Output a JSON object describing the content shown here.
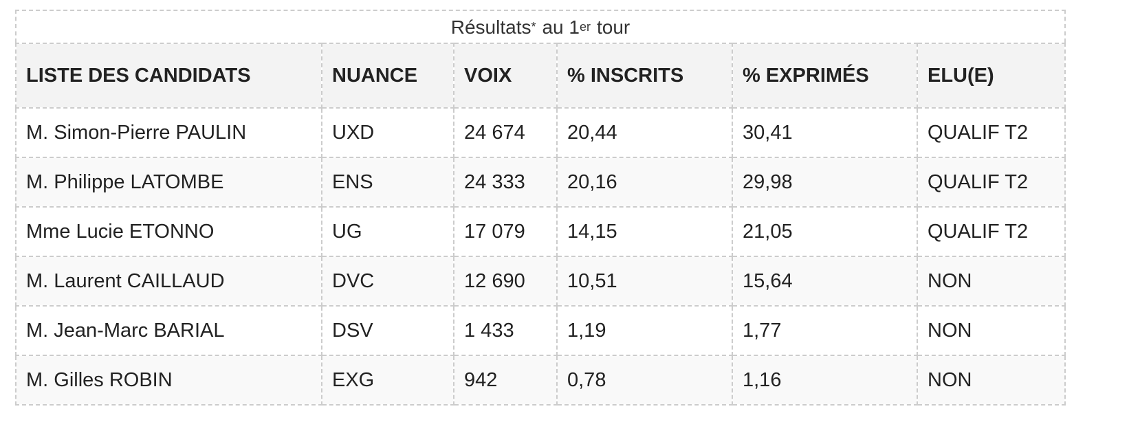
{
  "caption": [
    "Résultats",
    "*",
    "au 1",
    "er",
    "tour"
  ],
  "table": {
    "header": [
      "LISTE DES CANDIDATS",
      "NUANCE",
      "VOIX",
      "% INSCRITS",
      "% EXPRIMÉS",
      "ELU(E)"
    ],
    "rows": [
      [
        "M. Simon-Pierre PAULIN",
        "UXD",
        "24 674",
        "20,44",
        "30,41",
        "QUALIF T2"
      ],
      [
        "M. Philippe LATOMBE",
        "ENS",
        "24 333",
        "20,16",
        "29,98",
        "QUALIF T2"
      ],
      [
        "Mme Lucie ETONNO",
        "UG",
        "17 079",
        "14,15",
        "21,05",
        "QUALIF T2"
      ],
      [
        "M. Laurent CAILLAUD",
        "DVC",
        "12 690",
        "10,51",
        "15,64",
        "NON"
      ],
      [
        "M. Jean-Marc BARIAL",
        "DSV",
        "1 433",
        "1,19",
        "1,77",
        "NON"
      ],
      [
        "M. Gilles ROBIN",
        "EXG",
        "942",
        "0,78",
        "1,16",
        "NON"
      ]
    ]
  }
}
